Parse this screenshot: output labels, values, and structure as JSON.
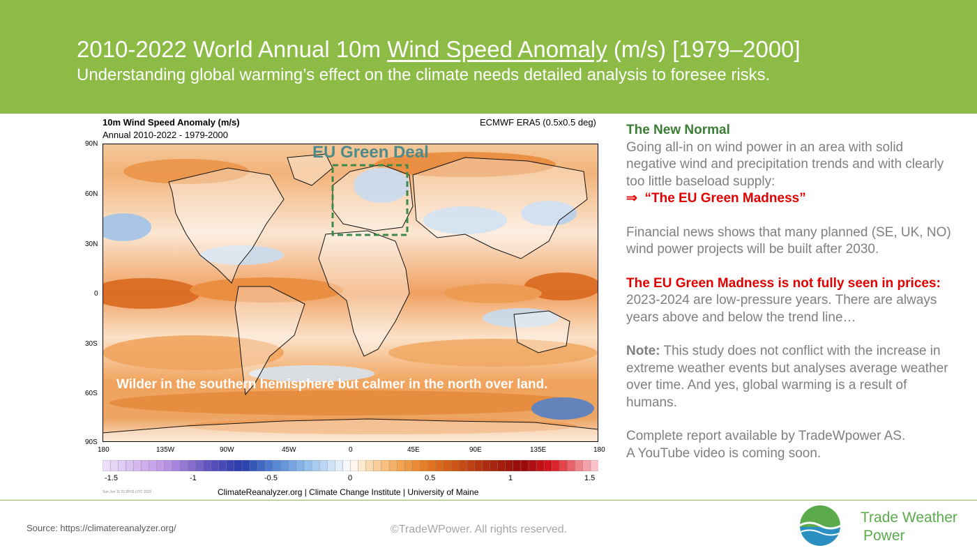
{
  "header": {
    "title_pre": "2010-2022 World Annual 10m ",
    "title_underlined": "Wind Speed Anomaly",
    "title_post": " (m/s) [1979–2000]",
    "subtitle": "Understanding global warming’s effect on the climate needs detailed analysis to foresee risks."
  },
  "map": {
    "title": "10m Wind Speed Anomaly (m/s)",
    "subtitle": "Annual 2010-2022 - 1979-2000",
    "dataset": "ECMWF ERA5 (0.5x0.5 deg)",
    "lat_labels": [
      "90N",
      "60N",
      "30N",
      "0",
      "30S",
      "60S",
      "90S"
    ],
    "lon_labels": [
      "180",
      "135W",
      "90W",
      "45W",
      "0",
      "45E",
      "90E",
      "135E",
      "180"
    ],
    "region_label": "EU Green Deal",
    "annotation": "Wilder in the southern hemisphere but calmer in the north over land.",
    "legend_labels": [
      "-1.5",
      "-1",
      "-0.5",
      "0",
      "0.5",
      "1",
      "1.5"
    ],
    "credit": "ClimateReanalyzer.org | Climate Change Institute | University of Maine",
    "timestamp": "Sun Jun 11 21:28:01 UTC 2023",
    "colors": {
      "positive": "#e07a1a",
      "negative": "#5a90d8",
      "region_box": "#3c8a4a"
    }
  },
  "panel": {
    "heading": "The New Normal",
    "p1": "Going all-in on wind power in an area with solid negative wind and precipitation trends and with clearly too little baseload supply:",
    "arrow": "⇒",
    "p1_highlight": "“The EU Green Madness”",
    "p2": "Financial news shows that many planned (SE, UK, NO) wind power projects will be built after 2030.",
    "p3_bold": "The EU Green Madness is not fully seen in prices:",
    "p3": " 2023-2024 are low-pressure years. There are always years above and below the trend line…",
    "p4_bold": "Note:",
    "p4": " This study does not conflict with the increase in extreme weather events but analyses average weather over time. And yes, global warming is a result of humans.",
    "p5a": "Complete report available by TradeWpower AS.",
    "p5b": "A YouTube video is coming soon."
  },
  "footer": {
    "source": "Source: https://climatereanalyzer.org/",
    "copyright": "©TradeWPower. All rights reserved.",
    "brand_line1": "Trade Weather",
    "brand_line2": "Power"
  }
}
